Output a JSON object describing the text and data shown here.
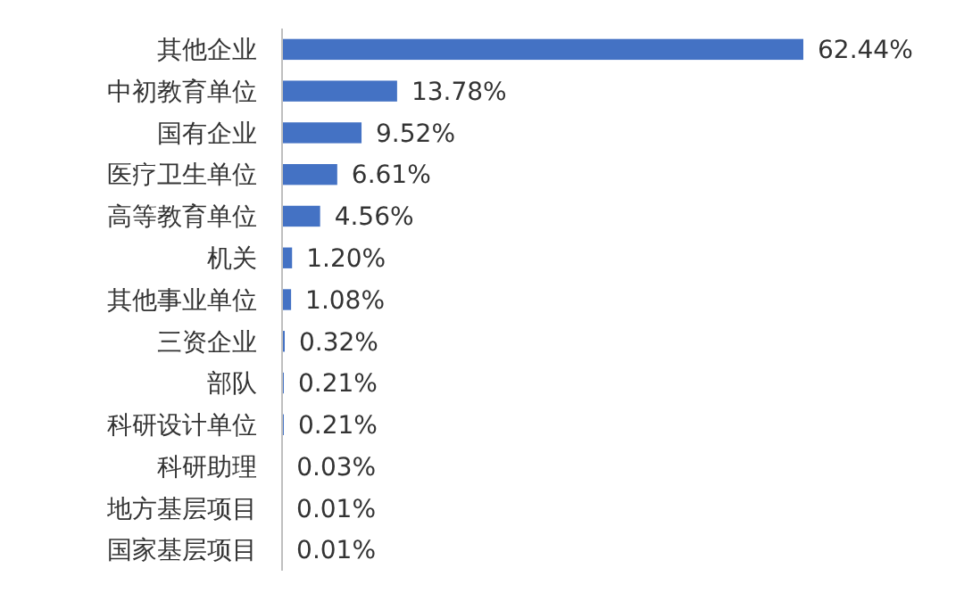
{
  "chart_data": {
    "type": "bar",
    "orientation": "horizontal",
    "categories": [
      "其他企业",
      "中初教育单位",
      "国有企业",
      "医疗卫生单位",
      "高等教育单位",
      "机关",
      "其他事业单位",
      "三资企业",
      "部队",
      "科研设计单位",
      "科研助理",
      "地方基层项目",
      "国家基层项目"
    ],
    "values": [
      62.44,
      13.78,
      9.52,
      6.61,
      4.56,
      1.2,
      1.08,
      0.32,
      0.21,
      0.21,
      0.03,
      0.01,
      0.01
    ],
    "value_labels": [
      "62.44%",
      "13.78%",
      "9.52%",
      "6.61%",
      "4.56%",
      "1.20%",
      "1.08%",
      "0.32%",
      "0.21%",
      "0.21%",
      "0.03%",
      "0.01%",
      "0.01%"
    ],
    "color": "#4472c4"
  }
}
